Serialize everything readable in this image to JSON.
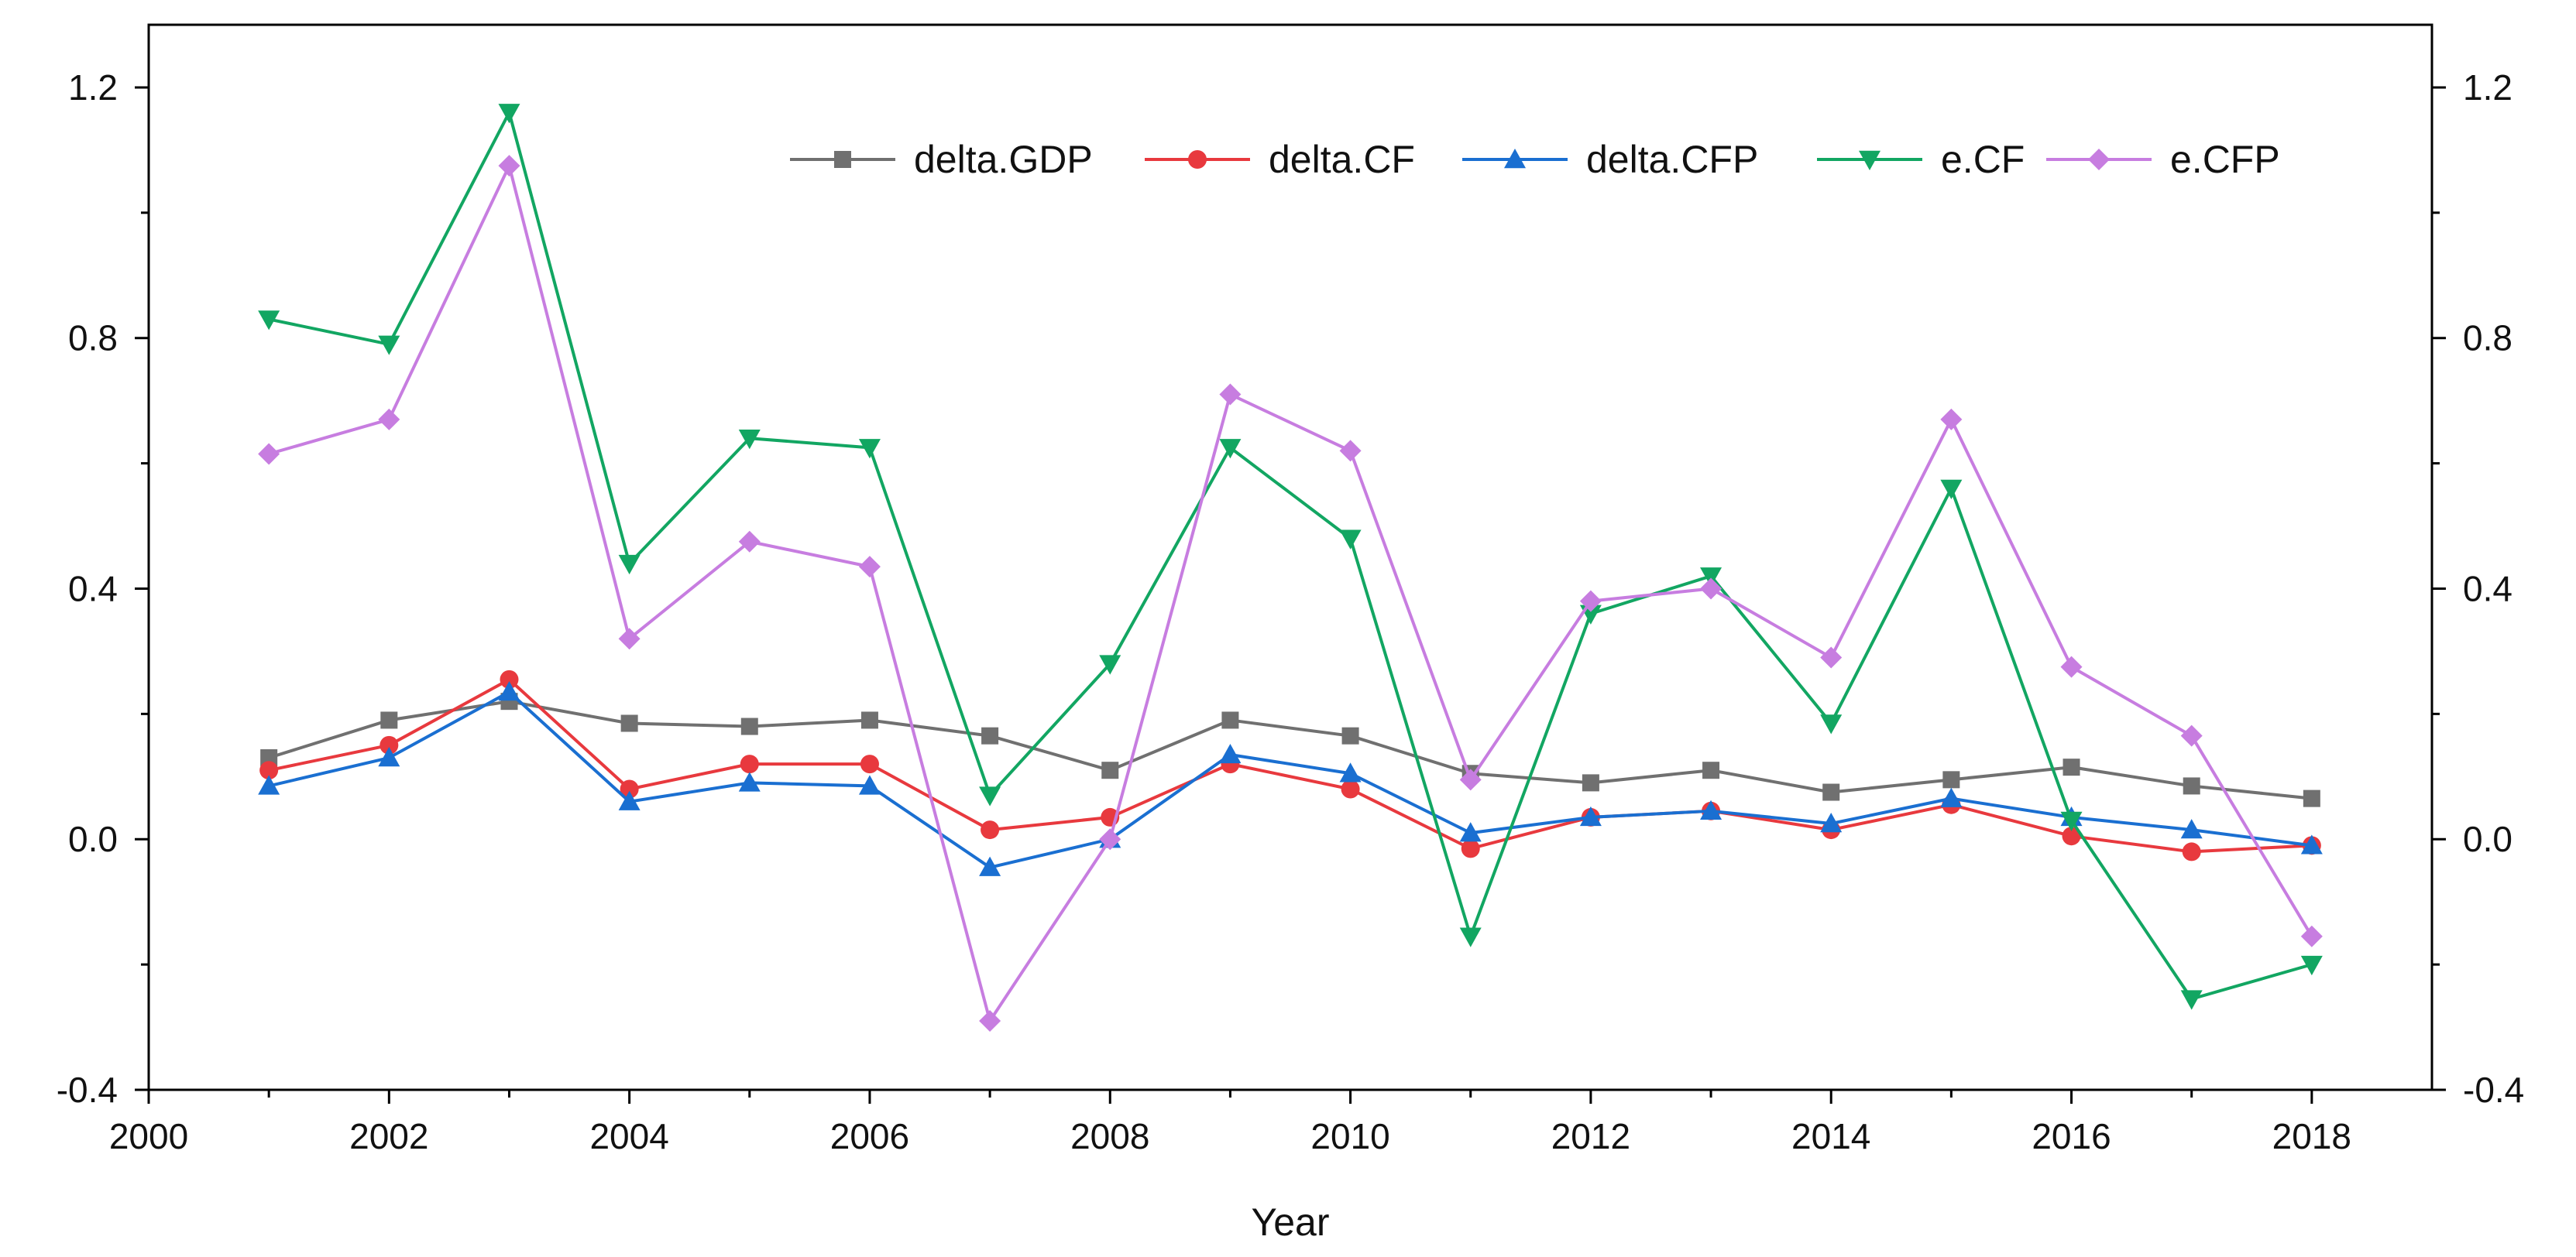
{
  "chart_data": {
    "type": "line",
    "title": "",
    "xlabel": "Year",
    "ylabel": "",
    "xlim": [
      2000,
      2019
    ],
    "ylim": [
      -0.4,
      1.3
    ],
    "x_ticks": [
      2000,
      2002,
      2004,
      2006,
      2008,
      2010,
      2012,
      2014,
      2016,
      2018
    ],
    "x_tick_labels": [
      "2000",
      "2002",
      "2004",
      "2006",
      "2008",
      "2010",
      "2012",
      "2014",
      "2016",
      "2018"
    ],
    "y_ticks": [
      -0.4,
      0.0,
      0.4,
      0.8,
      1.2
    ],
    "y_tick_labels": [
      "-0.4",
      "0.0",
      "0.4",
      "0.8",
      "1.2"
    ],
    "y2_tick_labels": [
      "-0.4",
      "0.0",
      "0.4",
      "0.8",
      "1.2"
    ],
    "legend_position": "top-right",
    "grid": false,
    "x": [
      2001,
      2002,
      2003,
      2004,
      2005,
      2006,
      2007,
      2008,
      2009,
      2010,
      2011,
      2012,
      2013,
      2014,
      2015,
      2016,
      2017,
      2018
    ],
    "series": [
      {
        "name": "delta.GDP",
        "color": "#707070",
        "marker": "square",
        "values": [
          0.13,
          0.19,
          0.22,
          0.185,
          0.18,
          0.19,
          0.165,
          0.11,
          0.19,
          0.165,
          0.105,
          0.09,
          0.11,
          0.075,
          0.095,
          0.115,
          0.085,
          0.065
        ]
      },
      {
        "name": "delta.CF",
        "color": "#e8393e",
        "marker": "circle",
        "values": [
          0.11,
          0.15,
          0.255,
          0.08,
          0.12,
          0.12,
          0.015,
          0.035,
          0.12,
          0.08,
          -0.015,
          0.035,
          0.045,
          0.015,
          0.055,
          0.005,
          -0.02,
          -0.01
        ]
      },
      {
        "name": "delta.CFP",
        "color": "#1a6fd1",
        "marker": "triangle-up",
        "values": [
          0.085,
          0.13,
          0.235,
          0.06,
          0.09,
          0.085,
          -0.045,
          -0.0,
          0.135,
          0.105,
          0.01,
          0.035,
          0.045,
          0.025,
          0.065,
          0.035,
          0.015,
          -0.01
        ]
      },
      {
        "name": "e.CF",
        "color": "#12a662",
        "marker": "triangle-down",
        "values": [
          0.83,
          0.79,
          1.16,
          0.44,
          0.64,
          0.625,
          0.07,
          0.28,
          0.625,
          0.48,
          -0.155,
          0.36,
          0.42,
          0.185,
          0.56,
          0.03,
          -0.255,
          -0.2
        ]
      },
      {
        "name": "e.CFP",
        "color": "#c77de0",
        "marker": "diamond",
        "values": [
          0.615,
          0.67,
          1.075,
          0.32,
          0.475,
          0.435,
          -0.29,
          0.0,
          0.71,
          0.62,
          0.095,
          0.38,
          0.4,
          0.29,
          0.67,
          0.275,
          0.165,
          -0.155
        ]
      }
    ]
  }
}
